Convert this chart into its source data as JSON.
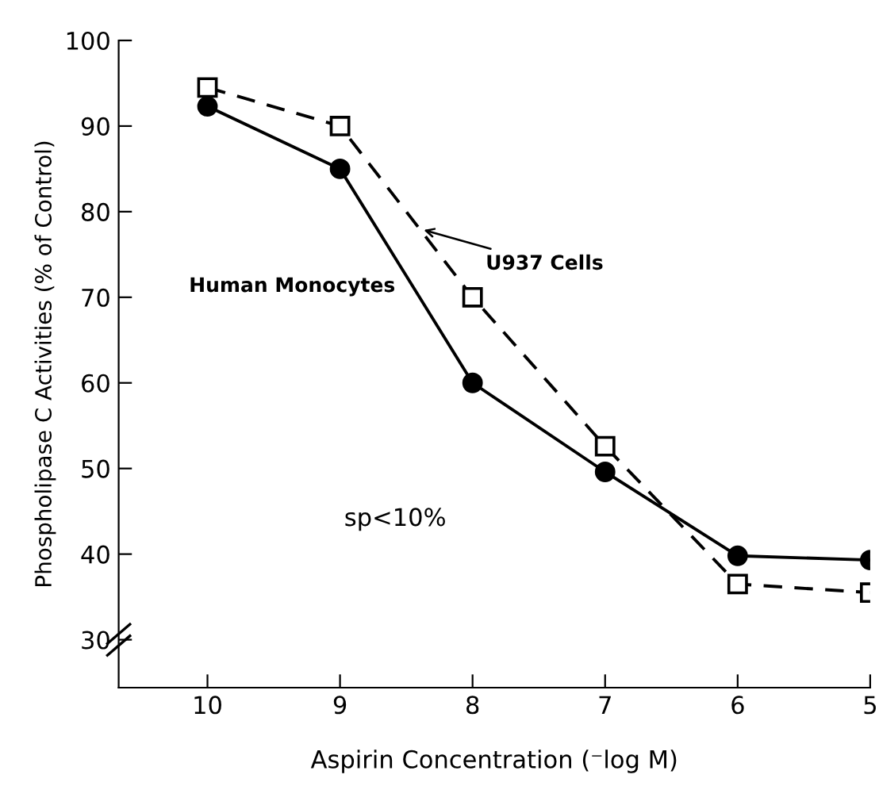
{
  "chart_data": {
    "type": "line",
    "xlabel": "Aspirin Concentration (⁻log M)",
    "ylabel": "Phospholipase C Activities (% of Control)",
    "x": [
      10,
      9,
      8,
      7,
      6,
      5
    ],
    "series": [
      {
        "name": "Human Monocytes",
        "color": "#000000",
        "values": [
          92.3,
          85,
          60,
          49.6,
          39.8,
          39.3
        ],
        "marker": "circle",
        "line_style": "solid"
      },
      {
        "name": "U937 Cells",
        "color": "#000000",
        "values": [
          94.5,
          90,
          70,
          52.6,
          36.5,
          35.5
        ],
        "marker": "square",
        "line_style": "dashed"
      }
    ],
    "xlim": [
      10.67,
      5
    ],
    "ylim": [
      24.4,
      100
    ],
    "xticks": [
      10,
      9,
      8,
      7,
      6,
      5
    ],
    "yticks": [
      30,
      40,
      50,
      60,
      70,
      80,
      90,
      100
    ],
    "annotations": [
      "sp<10%"
    ],
    "grid": false,
    "legend": false
  }
}
